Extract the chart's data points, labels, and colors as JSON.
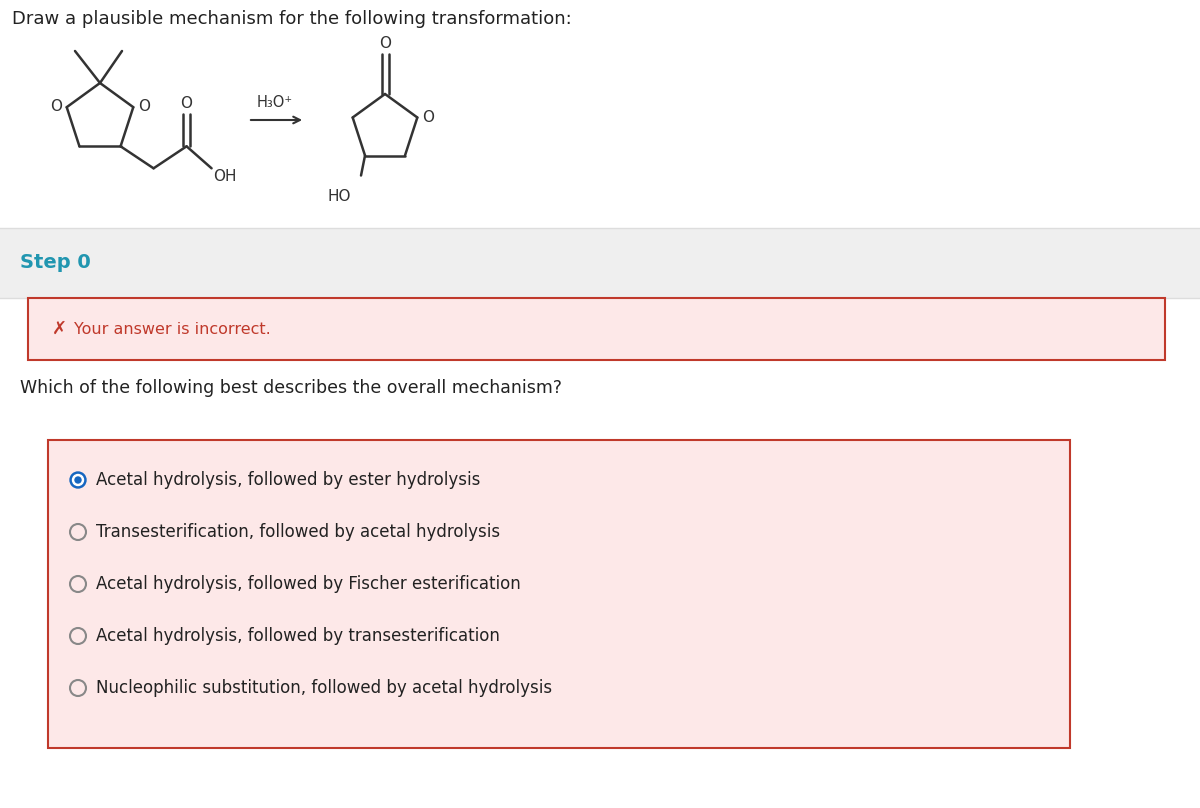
{
  "title": "Draw a plausible mechanism for the following transformation:",
  "title_fontsize": 13,
  "background_color": "#ffffff",
  "step_label": "Step 0",
  "step_label_color": "#2196b0",
  "step_bg_color": "#efefef",
  "error_box_bg": "#fde8e8",
  "error_box_border": "#c0392b",
  "error_text": "Your answer is incorrect.",
  "error_icon": "✗",
  "error_icon_color": "#c0392b",
  "question_text": "Which of the following best describes the overall mechanism?",
  "options": [
    "Acetal hydrolysis, followed by ester hydrolysis",
    "Transesterification, followed by acetal hydrolysis",
    "Acetal hydrolysis, followed by Fischer esterification",
    "Acetal hydrolysis, followed by transesterification",
    "Nucleophilic substitution, followed by acetal hydrolysis"
  ],
  "selected_option": 0,
  "options_box_bg": "#fde8e8",
  "options_box_border": "#c0392b",
  "radio_selected_color": "#1565c0",
  "radio_unselected_color": "#888888",
  "reagent_text": "H₃O⁺",
  "separator_color": "#dddddd",
  "mol_line_color": "#333333",
  "mol_label_color": "#333333"
}
